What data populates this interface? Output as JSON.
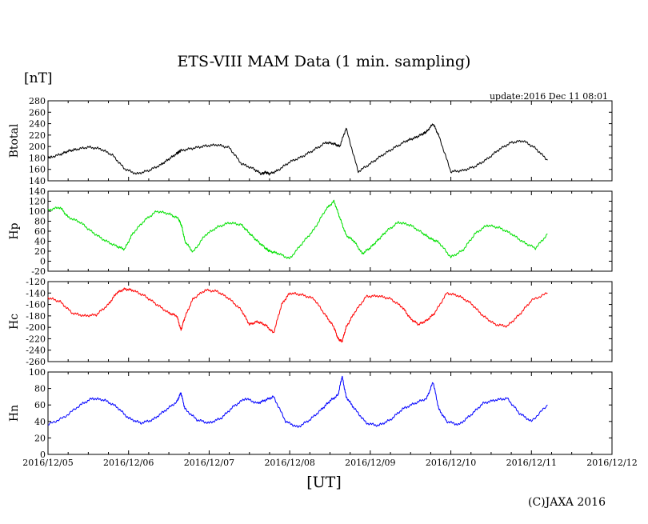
{
  "title": "ETS-VIII MAM Data (1 min. sampling)",
  "unit": "[nT]",
  "update": "update:2016 Dec 11 08:01",
  "xlabel": "[UT]",
  "copyright": "(C)JAXA 2016",
  "chart_data": {
    "type": "line",
    "x_ticks": [
      "2016/12/05",
      "2016/12/06",
      "2016/12/07",
      "2016/12/08",
      "2016/12/09",
      "2016/12/10",
      "2016/12/11",
      "2016/12/12"
    ],
    "x_range": [
      0,
      7
    ],
    "panels": [
      {
        "name": "Btotal",
        "color": "#000000",
        "ylim": [
          140,
          280
        ],
        "yticks": [
          140,
          160,
          180,
          200,
          220,
          240,
          260,
          280
        ],
        "x": [
          0,
          0.15,
          0.25,
          0.35,
          0.5,
          0.65,
          0.8,
          0.95,
          1.1,
          1.25,
          1.4,
          1.5,
          1.6,
          1.62,
          1.65,
          1.8,
          1.95,
          2.1,
          2.25,
          2.4,
          2.55,
          2.65,
          2.7,
          2.75,
          2.85,
          3.0,
          3.15,
          3.3,
          3.45,
          3.55,
          3.62,
          3.7,
          3.85,
          4.0,
          4.15,
          4.3,
          4.45,
          4.55,
          4.65,
          4.7,
          4.78,
          4.85,
          5.0,
          5.15,
          5.3,
          5.45,
          5.6,
          5.75,
          5.9,
          6.05,
          6.2
        ],
        "y": [
          180,
          186,
          192,
          195,
          199,
          196,
          185,
          161,
          152,
          158,
          168,
          178,
          188,
          190,
          193,
          197,
          201,
          203,
          198,
          170,
          161,
          152,
          155,
          152,
          158,
          173,
          182,
          194,
          207,
          205,
          200,
          232,
          156,
          170,
          185,
          198,
          210,
          215,
          222,
          226,
          240,
          219,
          156,
          158,
          165,
          178,
          195,
          207,
          210,
          197,
          176
        ]
      },
      {
        "name": "Hp",
        "color": "#00e000",
        "ylim": [
          -20,
          140
        ],
        "yticks": [
          -20,
          0,
          20,
          40,
          60,
          80,
          100,
          120,
          140
        ],
        "x": [
          0,
          0.15,
          0.25,
          0.4,
          0.55,
          0.7,
          0.85,
          0.95,
          1.05,
          1.2,
          1.35,
          1.5,
          1.62,
          1.66,
          1.7,
          1.8,
          1.95,
          2.1,
          2.25,
          2.4,
          2.5,
          2.6,
          2.7,
          2.75,
          2.85,
          3.0,
          3.15,
          3.3,
          3.45,
          3.55,
          3.62,
          3.7,
          3.8,
          3.9,
          4.0,
          4.1,
          4.2,
          4.35,
          4.5,
          4.65,
          4.75,
          4.85,
          5.0,
          5.15,
          5.3,
          5.45,
          5.6,
          5.75,
          5.9,
          6.05,
          6.2
        ],
        "y": [
          102,
          108,
          88,
          78,
          58,
          42,
          30,
          24,
          55,
          82,
          100,
          95,
          85,
          70,
          40,
          18,
          52,
          68,
          77,
          73,
          56,
          40,
          26,
          20,
          16,
          5,
          35,
          63,
          104,
          120,
          88,
          52,
          40,
          15,
          27,
          43,
          60,
          78,
          72,
          56,
          45,
          38,
          8,
          22,
          55,
          72,
          67,
          55,
          38,
          26,
          54
        ]
      },
      {
        "name": "Hc",
        "color": "#ff0000",
        "ylim": [
          -260,
          -120
        ],
        "yticks": [
          -260,
          -240,
          -220,
          -200,
          -180,
          -160,
          -140,
          -120
        ],
        "x": [
          0,
          0.15,
          0.3,
          0.45,
          0.6,
          0.75,
          0.85,
          0.95,
          1.05,
          1.2,
          1.35,
          1.5,
          1.6,
          1.65,
          1.7,
          1.8,
          1.95,
          2.1,
          2.25,
          2.4,
          2.5,
          2.6,
          2.7,
          2.8,
          2.9,
          3.0,
          3.15,
          3.3,
          3.45,
          3.55,
          3.6,
          3.65,
          3.7,
          3.8,
          3.95,
          4.1,
          4.25,
          4.4,
          4.5,
          4.6,
          4.7,
          4.8,
          4.95,
          5.1,
          5.25,
          5.4,
          5.55,
          5.7,
          5.85,
          6.0,
          6.2
        ],
        "y": [
          -148,
          -155,
          -175,
          -180,
          -178,
          -160,
          -140,
          -133,
          -135,
          -145,
          -160,
          -175,
          -180,
          -205,
          -182,
          -150,
          -135,
          -137,
          -150,
          -170,
          -195,
          -190,
          -196,
          -210,
          -160,
          -140,
          -143,
          -150,
          -180,
          -200,
          -220,
          -225,
          -200,
          -175,
          -146,
          -145,
          -150,
          -165,
          -185,
          -195,
          -188,
          -175,
          -140,
          -145,
          -158,
          -180,
          -195,
          -198,
          -178,
          -153,
          -140
        ]
      },
      {
        "name": "Hn",
        "color": "#0000ff",
        "ylim": [
          0,
          100
        ],
        "yticks": [
          0,
          20,
          40,
          60,
          80,
          100
        ],
        "x": [
          0,
          0.2,
          0.4,
          0.55,
          0.7,
          0.85,
          1.0,
          1.15,
          1.3,
          1.45,
          1.6,
          1.65,
          1.7,
          1.85,
          2.0,
          2.15,
          2.3,
          2.45,
          2.6,
          2.7,
          2.8,
          2.95,
          3.1,
          3.25,
          3.4,
          3.5,
          3.6,
          3.65,
          3.7,
          3.8,
          3.95,
          4.1,
          4.25,
          4.4,
          4.55,
          4.7,
          4.78,
          4.85,
          4.95,
          5.1,
          5.25,
          5.4,
          5.55,
          5.7,
          5.85,
          6.0,
          6.2
        ],
        "y": [
          36,
          45,
          60,
          68,
          66,
          58,
          44,
          38,
          42,
          53,
          64,
          75,
          55,
          42,
          38,
          44,
          58,
          68,
          62,
          66,
          70,
          40,
          33,
          42,
          55,
          65,
          72,
          95,
          70,
          56,
          38,
          35,
          42,
          55,
          62,
          68,
          88,
          55,
          40,
          36,
          48,
          62,
          66,
          68,
          50,
          40,
          60
        ]
      }
    ]
  }
}
